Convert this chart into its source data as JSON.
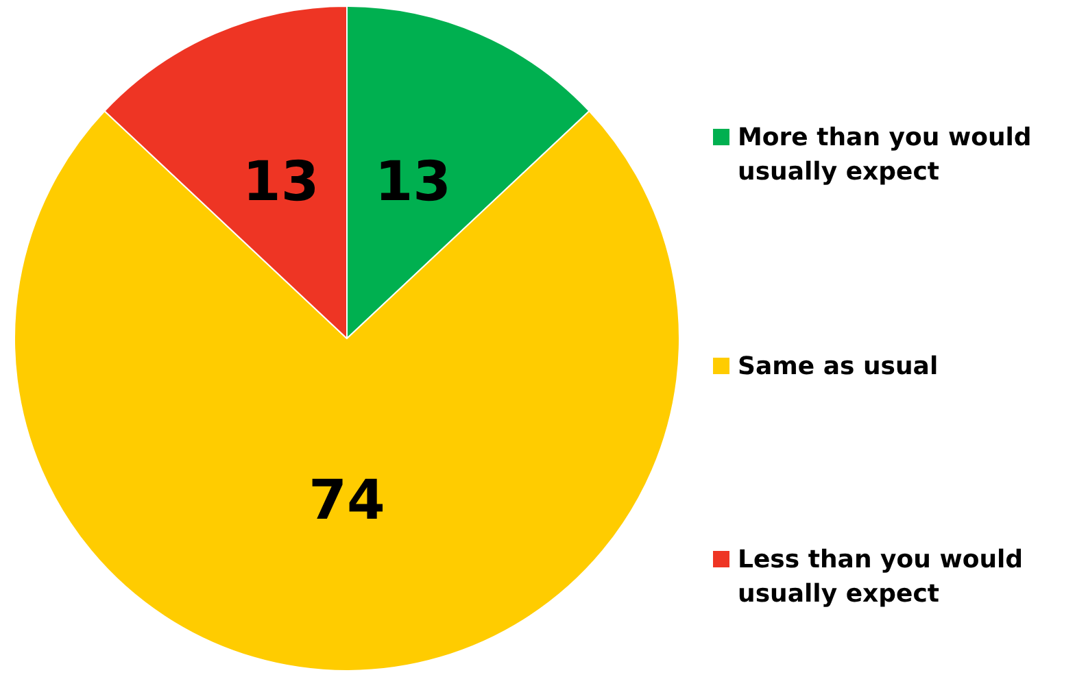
{
  "chart_data": {
    "type": "pie",
    "categories": [
      "More than you would usually expect",
      "Same as usual",
      "Less than you would usually expect"
    ],
    "values": [
      13,
      74,
      13
    ],
    "colors": [
      "#00b050",
      "#ffcc00",
      "#ee3524"
    ],
    "data_labels": true,
    "legend": "right"
  }
}
